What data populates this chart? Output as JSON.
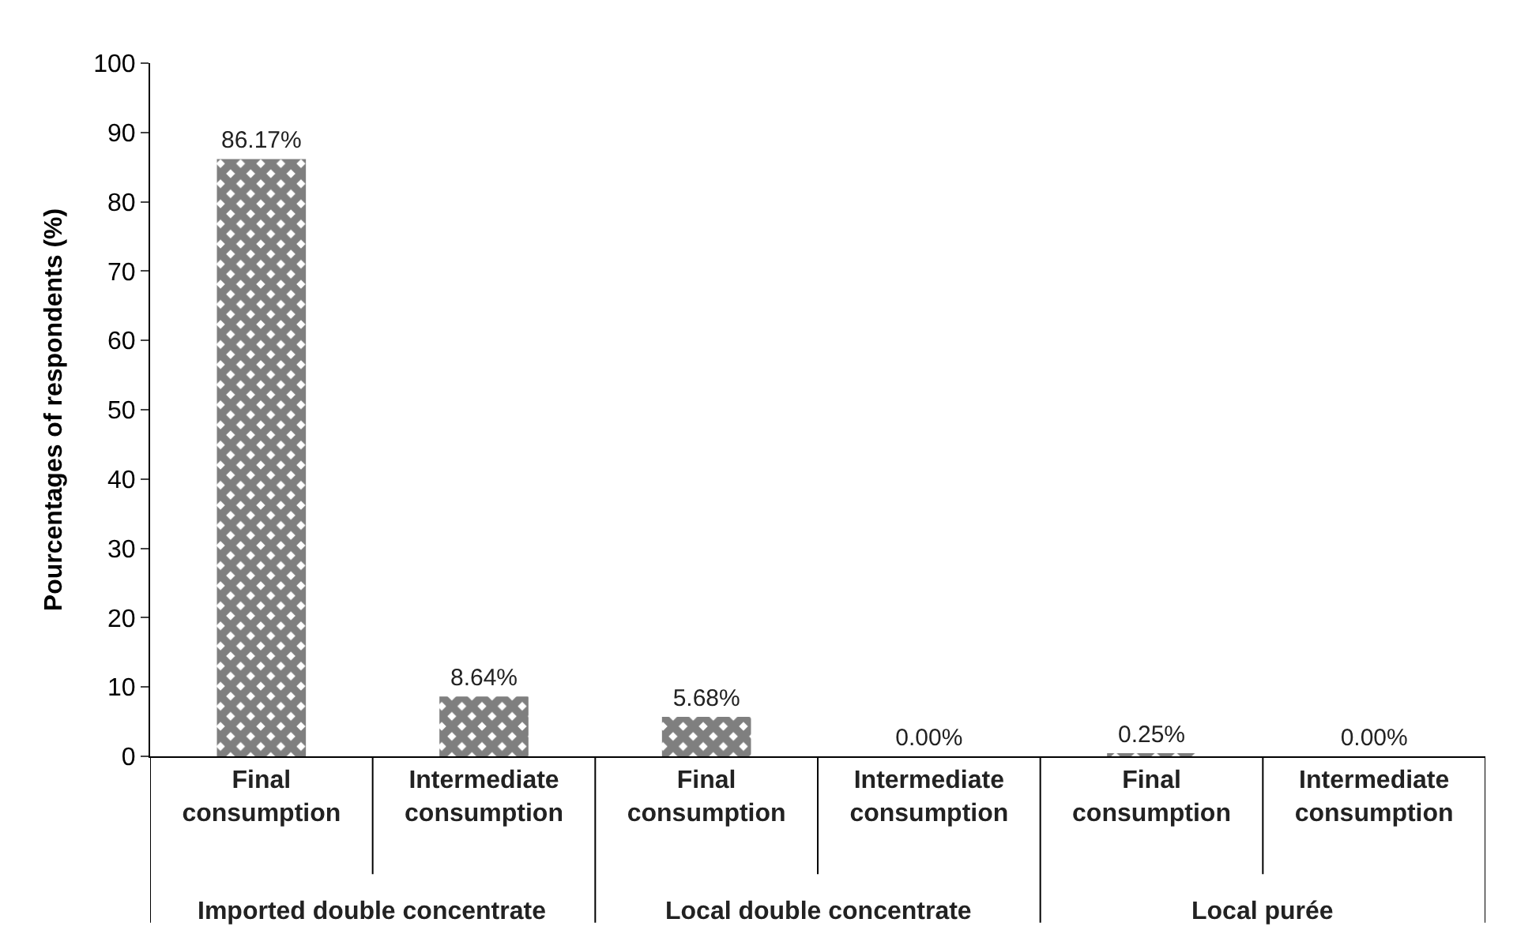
{
  "chart_data": {
    "type": "bar",
    "ylabel": "Pourcentages of respondents (%)",
    "categories": [
      "Final consumption",
      "Intermediate consumption",
      "Final consumption",
      "Intermediate consumption",
      "Final consumption",
      "Intermediate consumption"
    ],
    "values": [
      86.17,
      8.64,
      5.68,
      0.0,
      0.25,
      0.0
    ],
    "value_labels": [
      "86.17%",
      "8.64%",
      "5.68%",
      "0.00%",
      "0.25%",
      "0.00%"
    ],
    "color": "#000000",
    "ylim": [
      0,
      100
    ],
    "yticks": [
      0,
      10,
      20,
      30,
      40,
      50,
      60,
      70,
      80,
      90,
      100
    ],
    "annotations": [
      "Imported double concentrate",
      "Local double concentrate",
      "Local purée"
    ]
  }
}
